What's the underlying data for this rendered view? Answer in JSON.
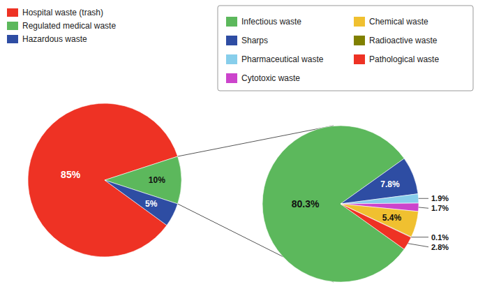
{
  "chart_data": [
    {
      "type": "pie",
      "categories": [
        "Hospital waste (trash)",
        "Regulated medical waste",
        "Hazardous waste"
      ],
      "values": [
        85,
        10,
        5
      ],
      "value_labels": [
        "85%",
        "10%",
        "5%"
      ],
      "colors": [
        "#ee3224",
        "#5cb85c",
        "#2e4da3"
      ],
      "data_labels": true,
      "legend": "top-left"
    },
    {
      "type": "pie",
      "categories": [
        "Infectious waste",
        "Sharps",
        "Pharmaceutical waste",
        "Cytotoxic waste",
        "Chemical waste",
        "Radioactive waste",
        "Pathological waste"
      ],
      "values": [
        80.3,
        7.8,
        1.9,
        1.7,
        5.4,
        0.1,
        2.8
      ],
      "value_labels": [
        "80.3%",
        "7.8%",
        "1.9%",
        "1.7%",
        "5.4%",
        "0.1%",
        "2.8%"
      ],
      "colors": [
        "#5cb85c",
        "#2e4da3",
        "#87ceeb",
        "#cc44cc",
        "#f0c030",
        "#808000",
        "#ee3224"
      ],
      "data_labels": true,
      "legend": "top-right"
    }
  ]
}
